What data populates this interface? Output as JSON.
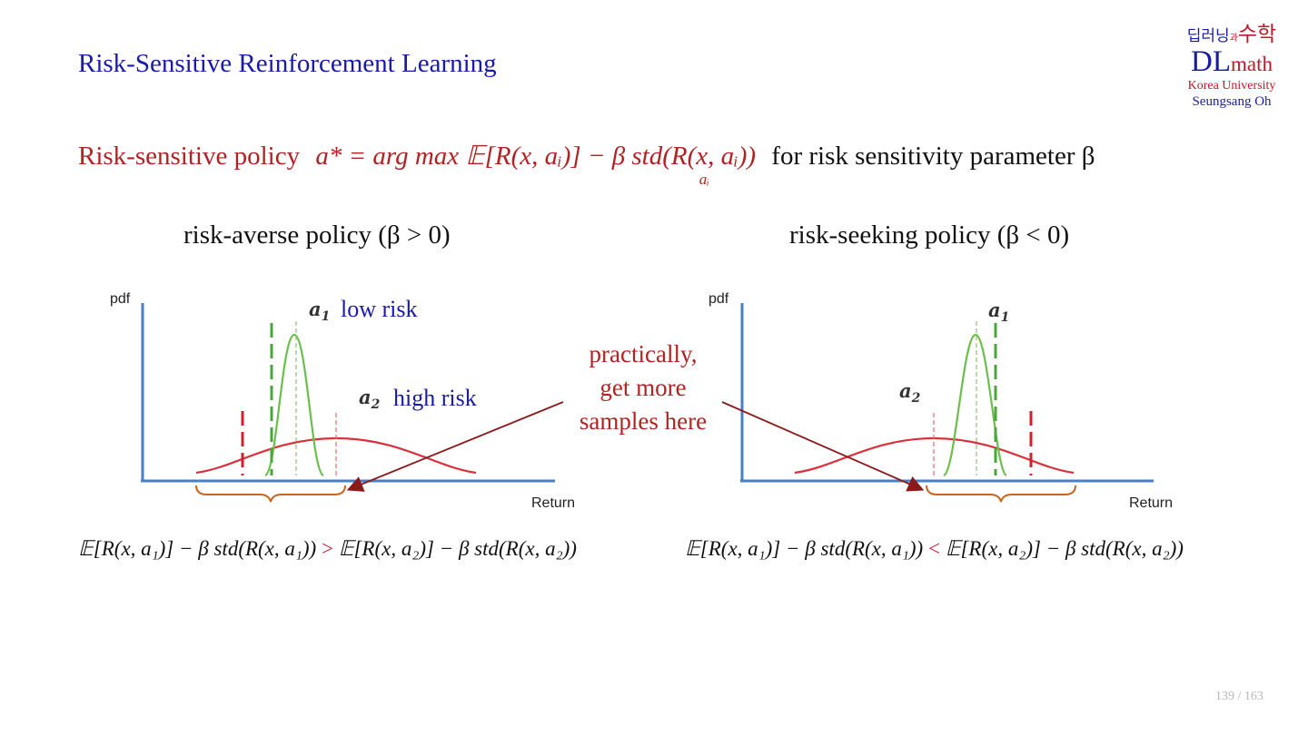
{
  "title": "Risk-Sensitive Reinforcement Learning",
  "logo": {
    "korean_prefix": "딥러닝",
    "korean_conj": "과",
    "korean_main": "수학",
    "dl": "DL",
    "math": "math",
    "university": "Korea University",
    "author": "Seungsang Oh"
  },
  "policy_line": {
    "label": "Risk-sensitive policy",
    "formula": "a* = arg max 𝔼[R(x, aᵢ)] − β std(R(x, aᵢ))",
    "formula_sub": "aᵢ",
    "suffix": "for risk sensitivity parameter β"
  },
  "left_panel": {
    "heading": "risk-averse policy (β > 0)",
    "y_label": "pdf",
    "x_label": "Return",
    "a1": "a",
    "a1_sub": "1",
    "a1_tag": "low risk",
    "a2": "a",
    "a2_sub": "2",
    "a2_tag": "high risk",
    "inequality_lhs": "𝔼[R(x, a₁)] − β std(R(x, a₁))",
    "inequality_rel": ">",
    "inequality_rhs": "𝔼[R(x, a₂)] − β std(R(x, a₂))"
  },
  "right_panel": {
    "heading": "risk-seeking policy (β < 0)",
    "y_label": "pdf",
    "x_label": "Return",
    "a1": "a",
    "a1_sub": "1",
    "a2": "a",
    "a2_sub": "2",
    "inequality_lhs": "𝔼[R(x, a₁)] − β std(R(x, a₁))",
    "inequality_rel": "<",
    "inequality_rhs": "𝔼[R(x, a₂)] − β std(R(x, a₂))"
  },
  "annotation": {
    "line1": "practically,",
    "line2": "get more",
    "line3": "samples here"
  },
  "page_number": "139 / 163",
  "colors": {
    "title": "#1a1aa8",
    "accent_red": "#b22222",
    "axis": "#4a7fc8",
    "low_risk_curve": "#6abf4b",
    "high_risk_curve": "#d9303a",
    "brace": "#c8641e"
  }
}
